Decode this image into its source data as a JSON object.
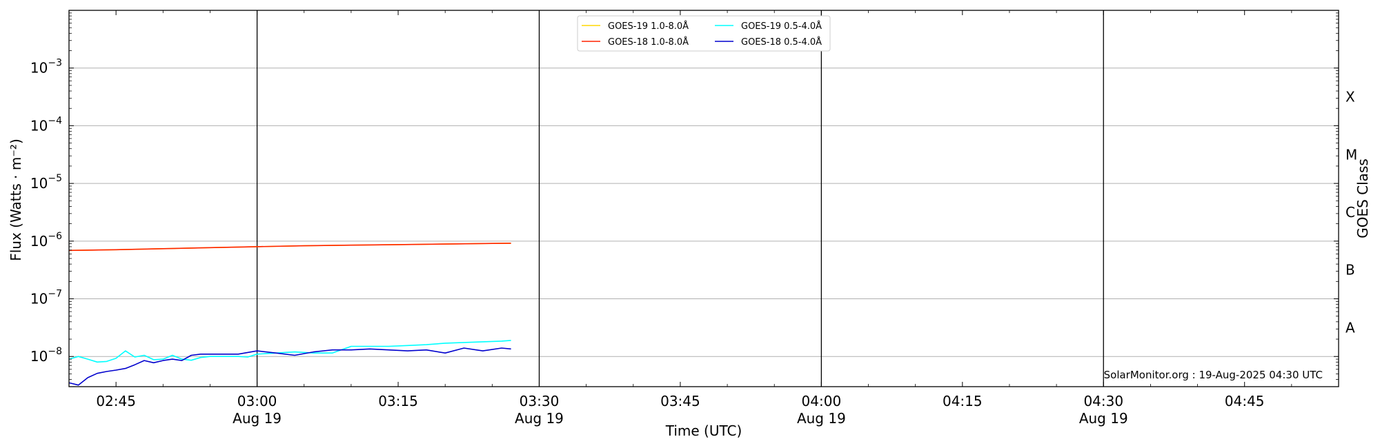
{
  "chart_data": {
    "type": "line",
    "title": "",
    "xlabel": "Time (UTC)",
    "ylabel": "Flux (Watts · m⁻²)",
    "y2label": "GOES Class",
    "yscale": "log",
    "ylim": [
      3e-09,
      0.01
    ],
    "xlim": [
      "02:40",
      "04:55"
    ],
    "grid": "horizontal at each decade",
    "legend_position": "top-center",
    "credit": "SolarMonitor.org : 19-Aug-2025 04:30 UTC",
    "y_ticks": [
      {
        "value": 1e-08,
        "base": "10",
        "exp": "−8"
      },
      {
        "value": 1e-07,
        "base": "10",
        "exp": "−7"
      },
      {
        "value": 1e-06,
        "base": "10",
        "exp": "−6"
      },
      {
        "value": 1e-05,
        "base": "10",
        "exp": "−5"
      },
      {
        "value": 0.0001,
        "base": "10",
        "exp": "−4"
      },
      {
        "value": 0.001,
        "base": "10",
        "exp": "−3"
      }
    ],
    "x_ticks": [
      {
        "time": "02:45",
        "label": "02:45",
        "date": ""
      },
      {
        "time": "03:00",
        "label": "03:00",
        "date": "Aug 19"
      },
      {
        "time": "03:15",
        "label": "03:15",
        "date": ""
      },
      {
        "time": "03:30",
        "label": "03:30",
        "date": "Aug 19"
      },
      {
        "time": "03:45",
        "label": "03:45",
        "date": ""
      },
      {
        "time": "04:00",
        "label": "04:00",
        "date": "Aug 19"
      },
      {
        "time": "04:15",
        "label": "04:15",
        "date": ""
      },
      {
        "time": "04:30",
        "label": "04:30",
        "date": "Aug 19"
      },
      {
        "time": "04:45",
        "label": "04:45",
        "date": ""
      }
    ],
    "vertical_lines": [
      "03:00",
      "03:30",
      "04:00",
      "04:30"
    ],
    "goes_classes": [
      {
        "label": "A",
        "value": 3.16e-08
      },
      {
        "label": "B",
        "value": 3.16e-07
      },
      {
        "label": "C",
        "value": 3.16e-06
      },
      {
        "label": "M",
        "value": 3.16e-05
      },
      {
        "label": "X",
        "value": 0.000316
      }
    ],
    "series": [
      {
        "name": "GOES-19 1.0-8.0Å",
        "color": "#ffd700",
        "x": [
          "02:40",
          "02:45",
          "02:50",
          "02:55",
          "03:00",
          "03:05",
          "03:10",
          "03:15",
          "03:20",
          "03:25",
          "03:27"
        ],
        "values": [
          6.9e-07,
          7.1e-07,
          7.4e-07,
          7.7e-07,
          8e-07,
          8.3e-07,
          8.5e-07,
          8.7e-07,
          8.9e-07,
          9.1e-07,
          9.2e-07
        ]
      },
      {
        "name": "GOES-18 1.0-8.0Å",
        "color": "#ff2200",
        "x": [
          "02:40",
          "02:45",
          "02:50",
          "02:55",
          "03:00",
          "03:05",
          "03:10",
          "03:15",
          "03:20",
          "03:25",
          "03:27"
        ],
        "values": [
          6.9e-07,
          7.1e-07,
          7.4e-07,
          7.7e-07,
          8e-07,
          8.3e-07,
          8.5e-07,
          8.7e-07,
          8.9e-07,
          9.1e-07,
          9.2e-07
        ]
      },
      {
        "name": "GOES-19 0.5-4.0Å",
        "color": "#00ffff",
        "x": [
          "02:40",
          "02:41",
          "02:42",
          "02:43",
          "02:44",
          "02:45",
          "02:46",
          "02:47",
          "02:48",
          "02:49",
          "02:50",
          "02:51",
          "02:52",
          "02:53",
          "02:54",
          "02:55",
          "02:56",
          "02:57",
          "02:58",
          "02:59",
          "03:00",
          "03:02",
          "03:04",
          "03:06",
          "03:08",
          "03:10",
          "03:12",
          "03:14",
          "03:16",
          "03:18",
          "03:20",
          "03:22",
          "03:24",
          "03:26",
          "03:27"
        ],
        "values": [
          9e-09,
          1e-08,
          9e-09,
          8e-09,
          8.2e-09,
          9.3e-09,
          1.25e-08,
          9.8e-09,
          1.05e-08,
          8.8e-09,
          9e-09,
          1.05e-08,
          9e-09,
          8.6e-09,
          9.6e-09,
          1e-08,
          1e-08,
          1e-08,
          1e-08,
          9.8e-09,
          1.1e-08,
          1.15e-08,
          1.2e-08,
          1.15e-08,
          1.15e-08,
          1.5e-08,
          1.5e-08,
          1.5e-08,
          1.55e-08,
          1.6e-08,
          1.7e-08,
          1.75e-08,
          1.8e-08,
          1.85e-08,
          1.9e-08
        ]
      },
      {
        "name": "GOES-18 0.5-4.0Å",
        "color": "#0000cd",
        "x": [
          "02:40",
          "02:41",
          "02:42",
          "02:43",
          "02:44",
          "02:45",
          "02:46",
          "02:47",
          "02:48",
          "02:49",
          "02:50",
          "02:51",
          "02:52",
          "02:53",
          "02:54",
          "02:56",
          "02:58",
          "03:00",
          "03:02",
          "03:04",
          "03:06",
          "03:08",
          "03:10",
          "03:12",
          "03:14",
          "03:16",
          "03:18",
          "03:20",
          "03:22",
          "03:24",
          "03:26",
          "03:27"
        ],
        "values": [
          3.5e-09,
          3.2e-09,
          4.3e-09,
          5.1e-09,
          5.5e-09,
          5.8e-09,
          6.2e-09,
          7.2e-09,
          8.5e-09,
          7.8e-09,
          8.5e-09,
          9e-09,
          8.5e-09,
          1.05e-08,
          1.1e-08,
          1.1e-08,
          1.1e-08,
          1.25e-08,
          1.15e-08,
          1.05e-08,
          1.2e-08,
          1.3e-08,
          1.3e-08,
          1.35e-08,
          1.3e-08,
          1.25e-08,
          1.3e-08,
          1.15e-08,
          1.4e-08,
          1.25e-08,
          1.4e-08,
          1.35e-08
        ]
      }
    ]
  }
}
